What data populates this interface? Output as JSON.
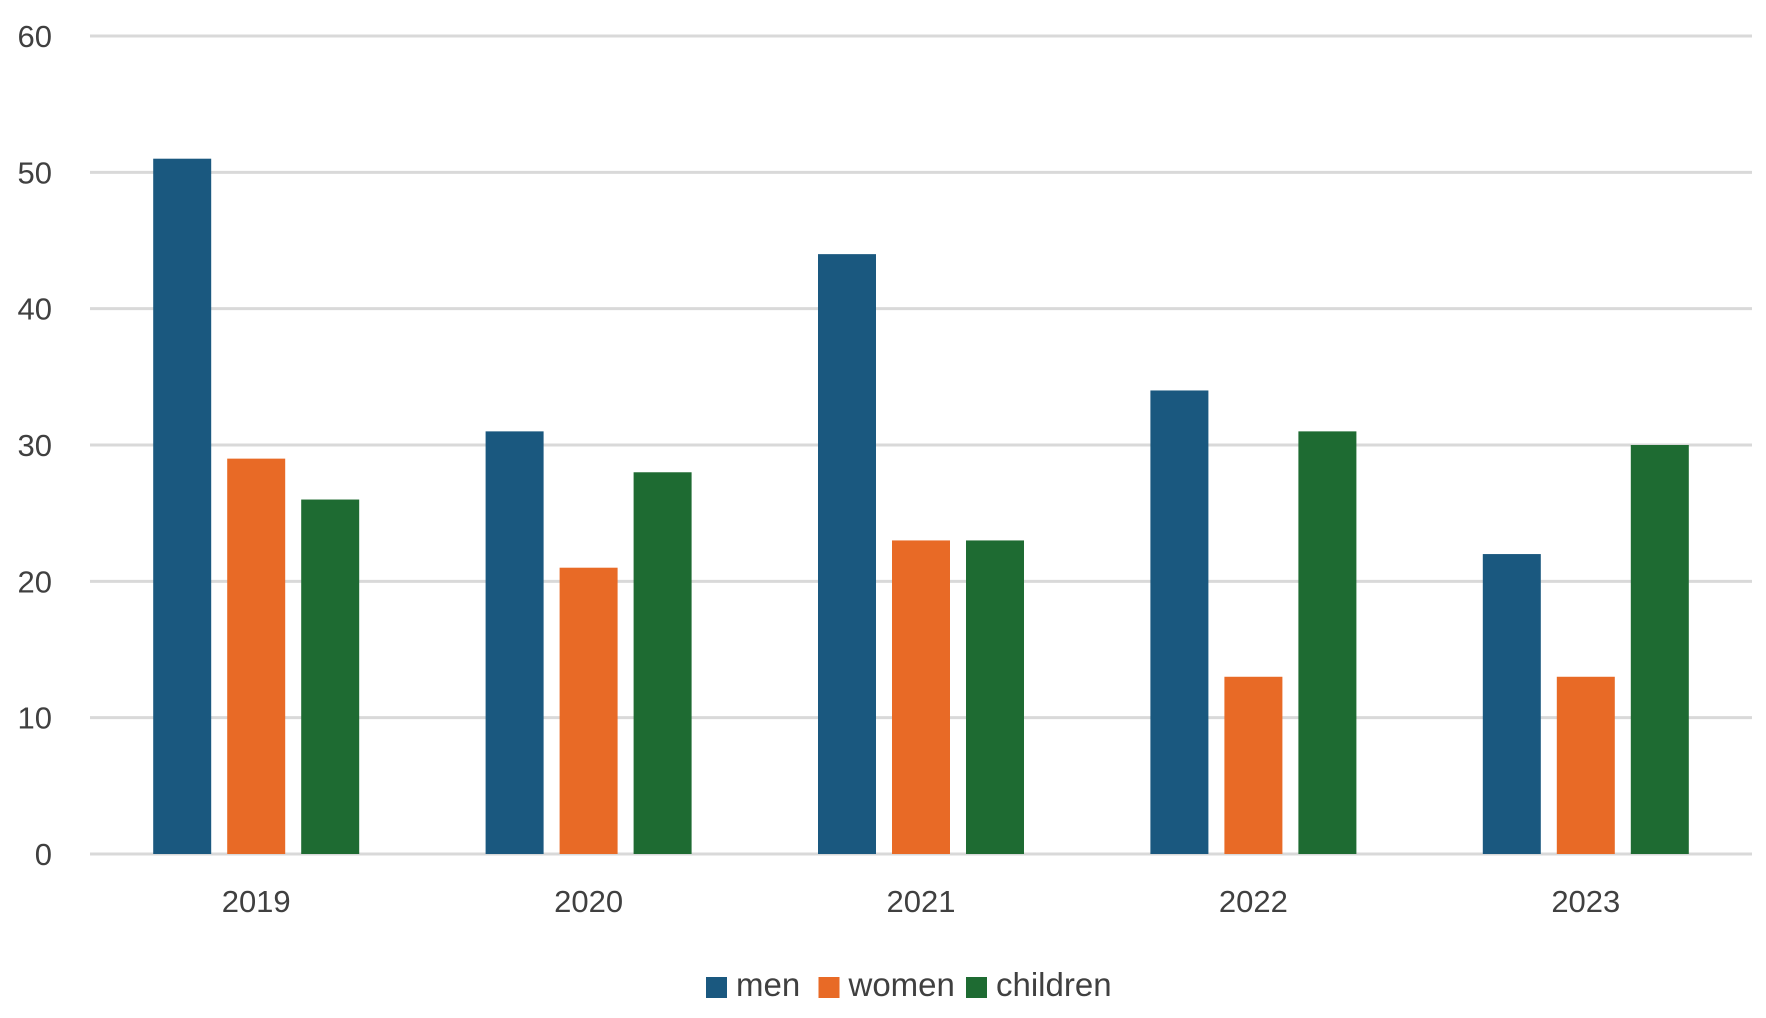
{
  "chart_data": {
    "type": "bar",
    "title": "",
    "xlabel": "",
    "ylabel": "",
    "categories": [
      "2019",
      "2020",
      "2021",
      "2022",
      "2023"
    ],
    "series": [
      {
        "name": "men",
        "color": "#1a587f",
        "values": [
          51,
          31,
          44,
          34,
          22
        ]
      },
      {
        "name": "women",
        "color": "#e86a26",
        "values": [
          29,
          21,
          23,
          13,
          13
        ]
      },
      {
        "name": "children",
        "color": "#1e6b32",
        "values": [
          26,
          28,
          23,
          31,
          30
        ]
      }
    ],
    "ylim": [
      0,
      60
    ],
    "yticks": [
      0,
      10,
      20,
      30,
      40,
      50,
      60
    ],
    "grid": true,
    "gridline_color": "#d9d9d9",
    "legend_position": "bottom-center"
  }
}
